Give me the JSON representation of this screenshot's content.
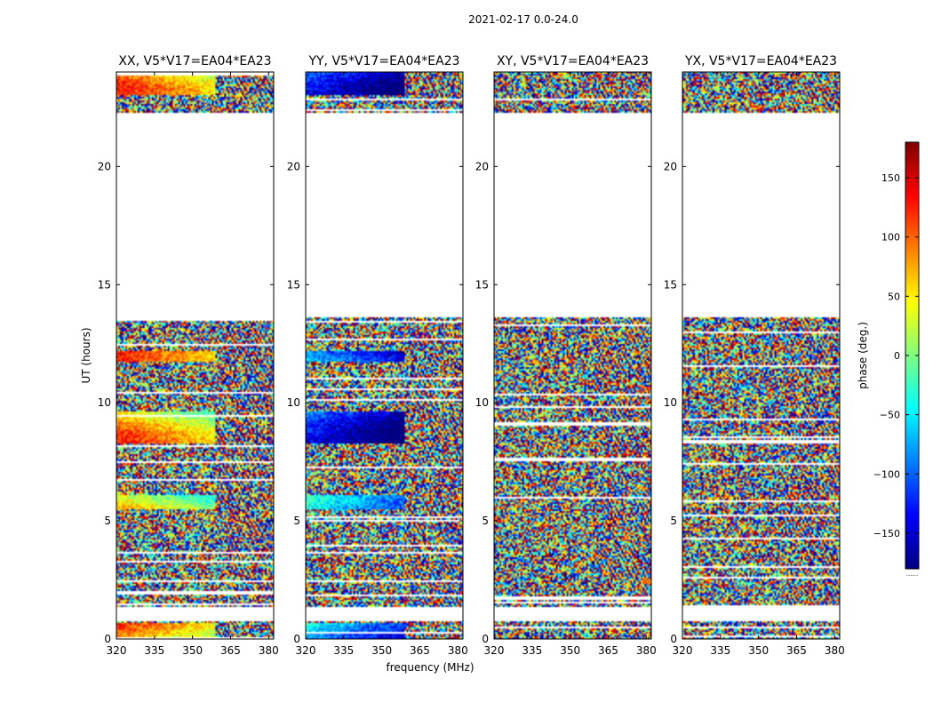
{
  "figure": {
    "suptitle": "2021-02-17 0.0-24.0",
    "xlabel": "frequency (MHz)",
    "ylabel": "UT (hours)"
  },
  "chart_data": {
    "type": "heatmap",
    "xlim": [
      320,
      382
    ],
    "ylim": [
      0,
      24
    ],
    "xticks": [
      320,
      335,
      350,
      365,
      380
    ],
    "yticks": [
      0,
      5,
      10,
      15,
      20
    ],
    "panels": [
      {
        "title": "XX, V5*V17=EA04*EA23",
        "pol": "XX"
      },
      {
        "title": "YY, V5*V17=EA04*EA23",
        "pol": "YY"
      },
      {
        "title": "XY, V5*V17=EA04*EA23",
        "pol": "XY"
      },
      {
        "title": "YX, V5*V17=EA04*EA23",
        "pol": "YX"
      }
    ],
    "data_blocks_hours": [
      [
        0.0,
        1.5
      ],
      [
        1.5,
        13.6
      ],
      [
        22.3,
        24.0
      ]
    ],
    "gaps_hours": [
      [
        0.75,
        1.35
      ],
      [
        13.6,
        22.3
      ]
    ],
    "colorbar": {
      "label": "phase (deg.)",
      "range": [
        -180,
        180
      ],
      "ticks": [
        -150,
        -100,
        -50,
        0,
        50,
        100,
        150
      ],
      "tick_labels": [
        "−150",
        "−100",
        "−50",
        "0",
        "50",
        "100",
        "150"
      ],
      "cmap": [
        "#00007f",
        "#0000ff",
        "#007fff",
        "#00ffff",
        "#7fff7f",
        "#ffff00",
        "#ff7f00",
        "#ff0000",
        "#7f0000"
      ]
    },
    "colorbar_footnote": "......"
  }
}
